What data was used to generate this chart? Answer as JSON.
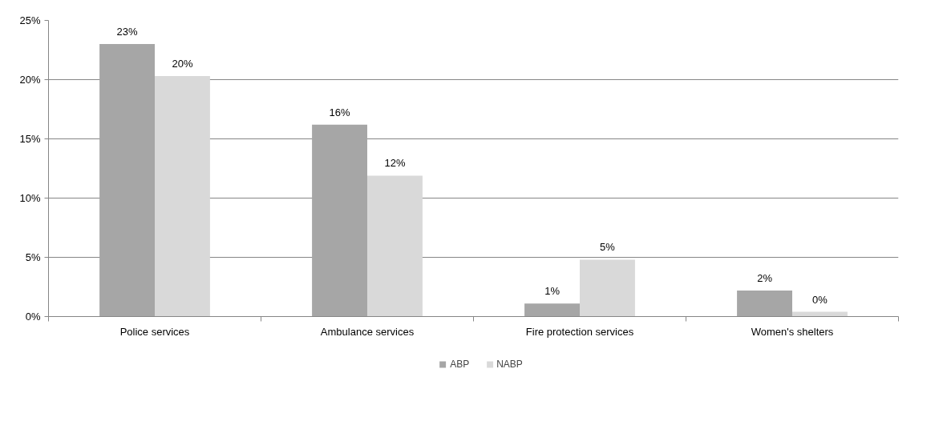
{
  "chart_data": {
    "type": "bar",
    "categories": [
      "Police services",
      "Ambulance services",
      "Fire protection services",
      "Women's shelters"
    ],
    "series": [
      {
        "name": "ABP",
        "color": "#a6a6a6",
        "values": [
          23.0,
          16.2,
          1.1,
          2.2
        ],
        "value_labels": [
          "23%",
          "16%",
          "1%",
          "2%"
        ]
      },
      {
        "name": "NABP",
        "color": "#d9d9d9",
        "values": [
          20.3,
          11.9,
          4.8,
          0.4
        ],
        "value_labels": [
          "20%",
          "12%",
          "5%",
          "0%"
        ]
      }
    ],
    "ylim": [
      0,
      25
    ],
    "yticks": [
      {
        "value": 0,
        "label": "0%"
      },
      {
        "value": 5,
        "label": "5%"
      },
      {
        "value": 10,
        "label": "10%"
      },
      {
        "value": 15,
        "label": "15%"
      },
      {
        "value": 20,
        "label": "20%"
      },
      {
        "value": 25,
        "label": "25%"
      }
    ],
    "grid": "y",
    "legend": "bottom"
  }
}
